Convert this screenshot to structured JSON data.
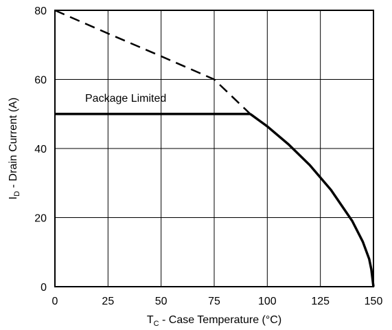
{
  "chart_data": {
    "type": "line",
    "title": "",
    "xlabel": {
      "main": "T",
      "sub": "C",
      "rest": " - Case Temperature (°C)"
    },
    "ylabel": {
      "main": "I",
      "sub": "D",
      "rest": " - Drain Current (A)"
    },
    "xlim": [
      0,
      150
    ],
    "ylim": [
      0,
      80
    ],
    "x_ticks": [
      "0",
      "25",
      "50",
      "75",
      "100",
      "125",
      "150"
    ],
    "y_ticks": [
      "0",
      "20",
      "40",
      "60",
      "80"
    ],
    "grid": true,
    "annotations": [
      {
        "text": "Package Limited"
      }
    ],
    "series": [
      {
        "style": "dashed",
        "x": [
          0,
          25,
          50,
          75,
          92
        ],
        "y": [
          80,
          73.3,
          66.7,
          60,
          50
        ]
      },
      {
        "style": "solid",
        "x": [
          0,
          92
        ],
        "y": [
          50,
          50
        ]
      },
      {
        "style": "solid",
        "x": [
          92,
          100,
          110,
          120,
          130,
          140,
          145,
          148,
          149,
          150
        ],
        "y": [
          50,
          46.4,
          41.2,
          35.2,
          28.0,
          19.0,
          13.0,
          8.0,
          5.0,
          0
        ]
      }
    ]
  }
}
